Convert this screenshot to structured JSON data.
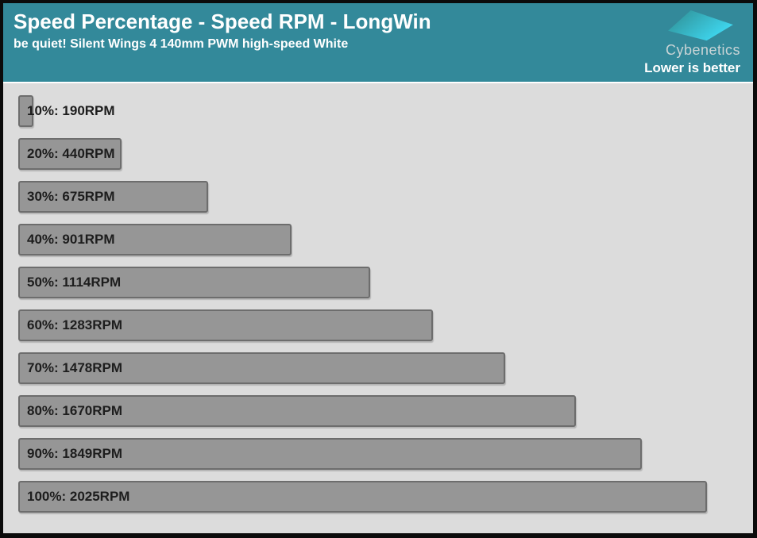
{
  "header": {
    "title": "Speed Percentage - Speed RPM - LongWin",
    "subtitle": "be quiet! Silent Wings 4 140mm PWM high-speed White",
    "brand": "Cybenetics",
    "note": "Lower is better"
  },
  "colors": {
    "header_bg": "#33899a",
    "body_bg": "#dcdcdc",
    "bar_fill": "#969696",
    "bar_border": "#6d6d6d",
    "label_text": "#1d1d1d",
    "logo_gradient_start": "#2e8b8f",
    "logo_gradient_end": "#3fd9f3"
  },
  "chart_data": {
    "type": "bar",
    "orientation": "horizontal",
    "title": "Speed Percentage - Speed RPM - LongWin",
    "subtitle": "be quiet! Silent Wings 4 140mm PWM high-speed White",
    "annotation": "Lower is better",
    "categories": [
      "10%",
      "20%",
      "30%",
      "40%",
      "50%",
      "60%",
      "70%",
      "80%",
      "90%",
      "100%"
    ],
    "values": [
      190,
      440,
      675,
      901,
      1114,
      1283,
      1478,
      1670,
      1849,
      2025
    ],
    "unit": "RPM",
    "labels": [
      "10%: 190RPM",
      "20%: 440RPM",
      "30%: 675RPM",
      "40%: 901RPM",
      "50%: 1114RPM",
      "60%: 1283RPM",
      "70%: 1478RPM",
      "80%: 1670RPM",
      "90%: 1849RPM",
      "100%: 2025RPM"
    ],
    "xlabel": "",
    "ylabel": "",
    "xlim": [
      161,
      2115
    ],
    "grid": false,
    "legend": false
  }
}
